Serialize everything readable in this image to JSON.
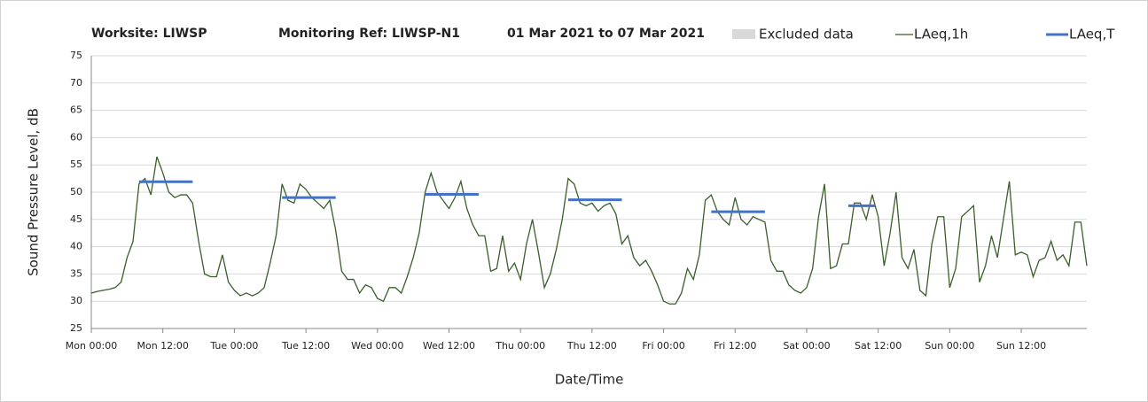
{
  "chart_data": {
    "type": "line",
    "titles": [
      "Worksite: LIWSP",
      "Monitoring Ref: LIWSP-N1",
      "01 Mar 2021 to 07 Mar 2021"
    ],
    "xlabel": "Date/Time",
    "ylabel": "Sound Pressure Level, dB",
    "x": [
      0,
      1,
      2,
      3,
      4,
      5,
      6,
      7,
      8,
      9,
      10,
      11,
      12,
      13,
      14,
      15,
      16,
      17,
      18,
      19,
      20,
      21,
      22,
      23,
      24,
      25,
      26,
      27,
      28,
      29,
      30,
      31,
      32,
      33,
      34,
      35,
      36,
      37,
      38,
      39,
      40,
      41,
      42,
      43,
      44,
      45,
      46,
      47,
      48,
      49,
      50,
      51,
      52,
      53,
      54,
      55,
      56,
      57,
      58,
      59,
      60,
      61,
      62,
      63,
      64,
      65,
      66,
      67,
      68,
      69,
      70,
      71,
      72,
      73,
      74,
      75,
      76,
      77,
      78,
      79,
      80,
      81,
      82,
      83,
      84,
      85,
      86,
      87,
      88,
      89,
      90,
      91,
      92,
      93,
      94,
      95,
      96,
      97,
      98,
      99,
      100,
      101,
      102,
      103,
      104,
      105,
      106,
      107,
      108,
      109,
      110,
      111,
      112,
      113,
      114,
      115,
      116,
      117,
      118,
      119,
      120,
      121,
      122,
      123,
      124,
      125,
      126,
      127,
      128,
      129,
      130,
      131,
      132,
      133,
      134,
      135,
      136,
      137,
      138,
      139,
      140,
      141,
      142,
      143,
      144,
      145,
      146,
      147,
      148,
      149,
      150,
      151,
      152,
      153,
      154,
      155,
      156,
      157,
      158,
      159,
      160,
      161,
      162,
      163,
      164,
      165,
      166,
      167
    ],
    "xlim": [
      0,
      167
    ],
    "xticks": [
      {
        "value": 0,
        "label": "Mon 00:00"
      },
      {
        "value": 12,
        "label": "Mon 12:00"
      },
      {
        "value": 24,
        "label": "Tue 00:00"
      },
      {
        "value": 36,
        "label": "Tue 12:00"
      },
      {
        "value": 48,
        "label": "Wed 00:00"
      },
      {
        "value": 60,
        "label": "Wed 12:00"
      },
      {
        "value": 72,
        "label": "Thu 00:00"
      },
      {
        "value": 84,
        "label": "Thu 12:00"
      },
      {
        "value": 96,
        "label": "Fri 00:00"
      },
      {
        "value": 108,
        "label": "Fri 12:00"
      },
      {
        "value": 120,
        "label": "Sat 00:00"
      },
      {
        "value": 132,
        "label": "Sat 12:00"
      },
      {
        "value": 144,
        "label": "Sun 00:00"
      },
      {
        "value": 156,
        "label": "Sun 12:00"
      }
    ],
    "ylim": [
      25,
      75
    ],
    "yticks": [
      25,
      30,
      35,
      40,
      45,
      50,
      55,
      60,
      65,
      70,
      75
    ],
    "grid": true,
    "legend": "top",
    "excluded": {
      "name": "Excluded data",
      "color": "#d9d9d9"
    },
    "series": [
      {
        "name": "LAeq,1h",
        "color": "#3b5e2b",
        "values": [
          31.5,
          31.8,
          32,
          32.2,
          32.5,
          33.5,
          38,
          41,
          51.5,
          52.5,
          49.5,
          56.5,
          53.5,
          50,
          49,
          49.5,
          49.5,
          48,
          41,
          35,
          34.5,
          34.5,
          38.5,
          33.5,
          32,
          31,
          31.5,
          31,
          31.5,
          32.5,
          37,
          42,
          51.5,
          48.5,
          48,
          51.5,
          50.5,
          49,
          48,
          47,
          48.5,
          43,
          35.5,
          34,
          34,
          31.5,
          33,
          32.5,
          30.5,
          30,
          32.5,
          32.5,
          31.5,
          34.5,
          38,
          42.5,
          50,
          53.5,
          50,
          48.5,
          47,
          49,
          52,
          47,
          44,
          42,
          42,
          35.5,
          36,
          42,
          35.5,
          37,
          34,
          40.5,
          45,
          39,
          32.5,
          35,
          39.5,
          45,
          52.5,
          51.5,
          48,
          47.5,
          48,
          46.5,
          47.5,
          48,
          46,
          40.5,
          42,
          38,
          36.5,
          37.5,
          35.5,
          33,
          30,
          29.5,
          29.5,
          31.5,
          36,
          34,
          38.5,
          48.5,
          49.5,
          46.5,
          45,
          44,
          49,
          45,
          44,
          45.5,
          45,
          44.5,
          37.5,
          35.5,
          35.5,
          33,
          32,
          31.5,
          32.5,
          36,
          45.5,
          51.5,
          36,
          36.5,
          40.5,
          40.5,
          48,
          48,
          45,
          49.5,
          45.5,
          36.5,
          42.5,
          50,
          38,
          36,
          39.5,
          32,
          31,
          40.5,
          45.5,
          45.5,
          32.5,
          36,
          45.5,
          46.5,
          47.5,
          33.5,
          36.5,
          42,
          38,
          45,
          52,
          38.5,
          39,
          38.5,
          34.5,
          37.5,
          38,
          41,
          37.5,
          38.5,
          36.5,
          44.5,
          44.5,
          36.5
        ]
      }
    ],
    "periods": {
      "name": "LAeq,T",
      "color": "#4472c4",
      "segments": [
        {
          "x": [
            8,
            17
          ],
          "value": 51.9
        },
        {
          "x": [
            32,
            41
          ],
          "value": 49
        },
        {
          "x": [
            56,
            65
          ],
          "value": 49.6
        },
        {
          "x": [
            80,
            89
          ],
          "value": 48.6
        },
        {
          "x": [
            104,
            113
          ],
          "value": 46.4
        },
        {
          "x": [
            127,
            131.5
          ],
          "value": 47.5
        }
      ]
    }
  }
}
